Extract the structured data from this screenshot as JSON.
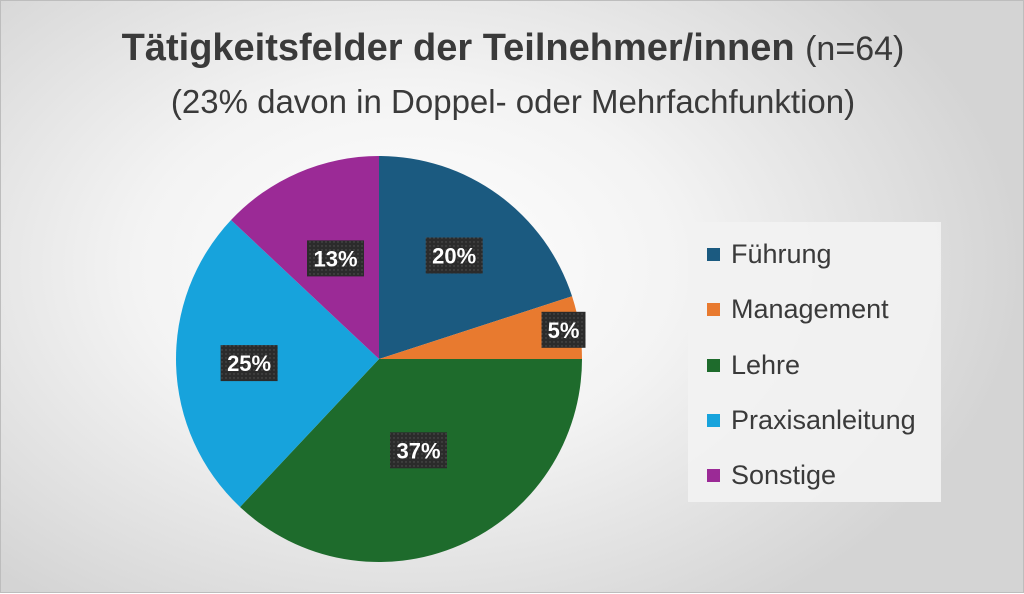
{
  "title": {
    "main": "Tätigkeitsfelder der Teilnehmer/innen",
    "n": "(n=64)",
    "subtitle": "(23% davon in Doppel- oder Mehrfachfunktion)"
  },
  "chart_data": {
    "type": "pie",
    "categories": [
      "Führung",
      "Management",
      "Lehre",
      "Praxisanleitung",
      "Sonstige"
    ],
    "values": [
      20,
      5,
      37,
      25,
      13
    ],
    "labels": [
      "20%",
      "5%",
      "37%",
      "25%",
      "13%"
    ],
    "colors": [
      "#1b5a80",
      "#e87a2f",
      "#1e6b2c",
      "#17a3dc",
      "#9b2a96"
    ],
    "start_angle": "12 o'clock",
    "direction": "clockwise",
    "legend_position": "right"
  }
}
